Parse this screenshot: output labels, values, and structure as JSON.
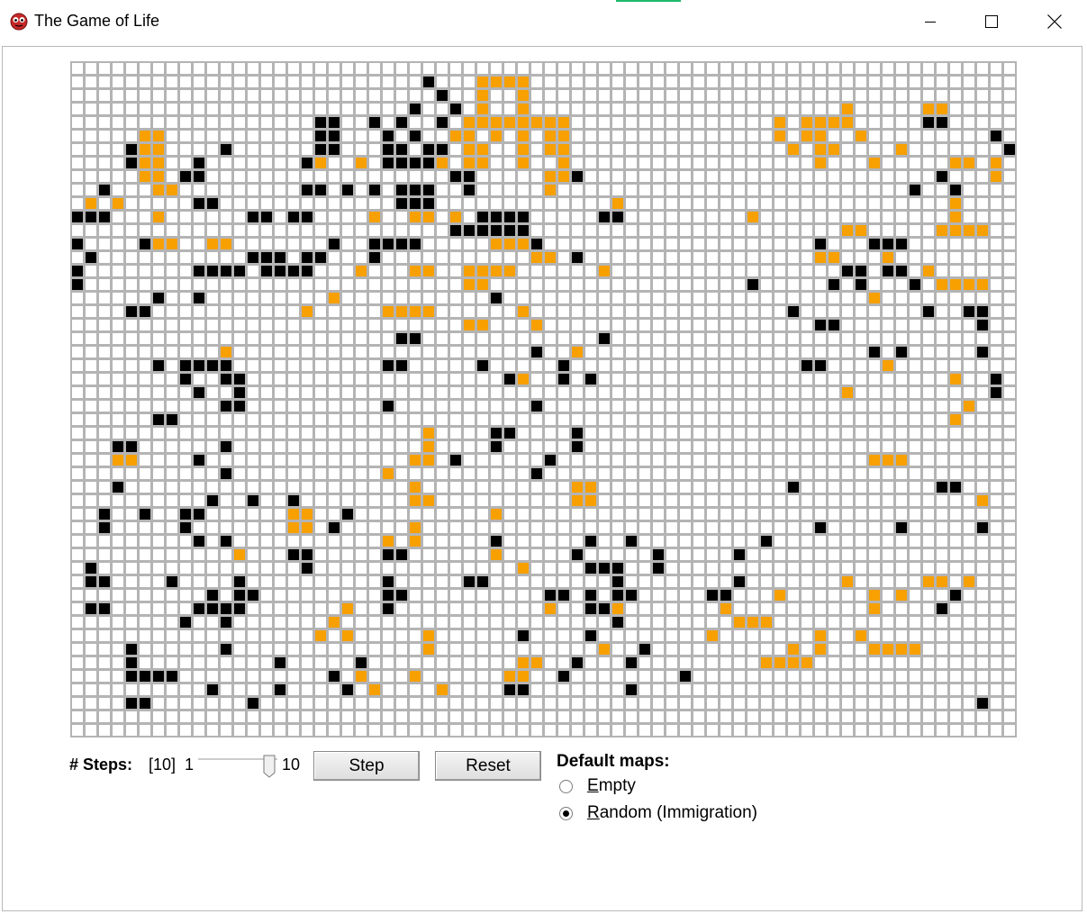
{
  "window": {
    "title": "The Game of Life",
    "icon": "ladybug-app-icon",
    "controls": [
      "minimize-icon",
      "maximize-icon",
      "close-icon"
    ]
  },
  "grid": {
    "rows": 50,
    "cols": 70,
    "colors": {
      "empty": "#ffffff",
      "gridline": "#b4b4b4",
      "alive": "#000000",
      "newborn": "#f7a000"
    },
    "cells": [
      "......................................................................",
      "..........................X...OOOO....................................",
      "...........................X..O..O....................................",
      ".........................X..X.O..O.......................O.....OO.....",
      "..................XX..X.X..X.OOOOOOOO...............O.OOOO.....XX.....",
      ".....OO...........XX...X.X..OO.O.O.OO...............O.OO..O.........X",
      "....XOO....X......XX...XX.XX.OO..O.OO................O.OO....O.......X",
      "....XOO..X.......XO..O.XXXXO.OO..O..O..................O...O.....OO.O",
      ".....OO.XX..................XX.....OOX..........................X...O.",
      "..X...OO.........XX.X.X.XXX..X.....O..........................X..X....",
      ".O.O.....XX.............XXX.............O........................O....",
      "XXX...O......XX.XX....O..OO.O.XXXX.....XX.........O..............O...",
      "............................XXXXXX.......................OO.....OOOO.",
      "X....XOO..OO.......X..XXXX.....OOOX....................X...XXX.......",
      ".X...........XXX.XX...X...........OO.X.................OO...O........",
      "X........XXXX.XXXX...O...OO..OOOO......O.................XX.XX.O.....",
      "X............................OO...................X.....X.X...X.OOOO.",
      "......X..X.........O...........X...........................O.........",
      "....XX...........O.....OOOO......O...................X.........X..XX.",
      ".............................OO...O....................XX..........X.",
      "........................XX.............X..............................",
      "...........O......................X..O.....................X.X.....X.",
      "......X.XXXX...........XX.....X.....X.................XX....O........",
      "........X..XX...................XO..X.X..........................O..X",
      ".........X..X............................................O..........X",
      "...........XX..........X..........X...............................O..",
      "......XX.........................................................O...",
      "..........................O....XX....X...............................",
      "...XX......X..............O....X.....X...............................",
      "...OO....X...............OO.X......X.......................OOO.......",
      "...........X...........O..........X..................................",
      "...X.....................O...........OO..............X..........XX...",
      "..........X..X..X........OO..........OO............................O.",
      "..X..X..XX......OO..X..........O.....................................",
      "..X.....X.......OO.X.....O.............................X.....X.....X.",
      ".........X.X...........O.O.....X......X..X.........X.................",
      "............O...XX.....XX......O.....X.....X.....X....................",
      ".X...............X...............O....XXX..X..........................",
      ".XX....X....X..........X.....XX.........X........X.......O.....OO.O...",
      "..........X.XX.........XX..........XX.X.XX.....XX...O......O.O...X...",
      ".XX......XXXX.......O..X...........O..XXO.......O..........O....X.....",
      "........X..X.......O....................X........OOO.................",
      "..................O.O.....O......X....X........O.......O..O..........",
      "....X......X..............O............O..X..........O.O...OOOO......",
      "....X..........X.....X...........OO..X...X.........OOOO..............",
      "....XXXX...........X.O...O......OO..X........X.......................",
      "..........X....X....X.O....O....XX.......X...........................",
      "....XX.......X.....................................................X.",
      "......................................................................",
      "......................................................................"
    ]
  },
  "controls": {
    "steps_label": "# Steps:",
    "steps_current": "[10]",
    "slider_min": "1",
    "slider_max": "10",
    "slider_value": 10,
    "step_button": "Step",
    "reset_button": "Reset"
  },
  "default_maps": {
    "label": "Default maps:",
    "options": [
      {
        "label": "Empty",
        "selected": false
      },
      {
        "label": "Random (Immigration)",
        "selected": true
      }
    ]
  }
}
